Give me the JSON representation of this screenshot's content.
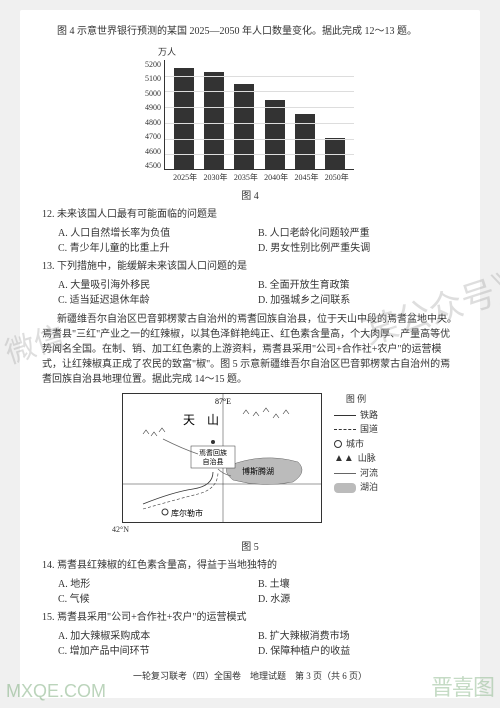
{
  "intro_text": "图 4 示意世界银行预测的某国 2025—2050 年人口数量变化。据此完成 12～13 题。",
  "chart": {
    "type": "bar",
    "yaxis_label": "万人",
    "ylim": [
      4500,
      5200
    ],
    "yticks": [
      5200,
      5100,
      5000,
      4900,
      4800,
      4700,
      4600,
      4500
    ],
    "categories": [
      "2025年",
      "2030年",
      "2035年",
      "2040年",
      "2045年",
      "2050年"
    ],
    "values": [
      5140,
      5120,
      5040,
      4940,
      4850,
      4700
    ],
    "bar_color": "#333333",
    "grid_color": "#dddddd",
    "caption": "图 4"
  },
  "q12": {
    "stem": "12. 未来该国人口最有可能面临的问题是",
    "opts": {
      "A": "A. 人口自然增长率为负值",
      "B": "B. 人口老龄化问题较严重",
      "C": "C. 青少年儿童的比重上升",
      "D": "D. 男女性别比例严重失调"
    }
  },
  "q13": {
    "stem": "13. 下列措施中，能缓解未来该国人口问题的是",
    "opts": {
      "A": "A. 大量吸引海外移民",
      "B": "B. 全面开放生育政策",
      "C": "C. 适当延迟退休年龄",
      "D": "D. 加强城乡之间联系"
    }
  },
  "passage_text": "新疆维吾尔自治区巴音郭楞蒙古自治州的焉耆回族自治县，位于天山中段的焉耆盆地中央。焉耆县\"三红\"产业之一的红辣椒，以其色泽鲜艳纯正、红色素含量高，个大肉厚、产量高等优势闻名全国。在制、销、加工红色素的上游资料，焉耆县采用\"公司+合作社+农户\"的运营模式，让红辣椒真正成了农民的致富\"椒\"。图 5 示意新疆维吾尔自治区巴音郭楞蒙古自治州的焉耆回族自治县地理位置。据此完成 14～15 题。",
  "map": {
    "caption": "图 5",
    "lon_label": "87°E",
    "lat_label": "42°N",
    "mountain_label": "天　山",
    "county_label": "焉耆回族\n自治县",
    "lake_label": "博斯腾湖",
    "city_label": "库尔勒市",
    "legend_title": "图 例",
    "legend": {
      "rail": "铁路",
      "road": "国道",
      "city": "城市",
      "peak": "山脉",
      "river": "河流",
      "lake": "湖泊"
    },
    "colors": {
      "border": "#333333",
      "lake_fill": "#bbbbbb",
      "stroke": "#333333"
    }
  },
  "q14": {
    "stem": "14. 焉耆县红辣椒的红色素含量高，得益于当地独特的",
    "opts": {
      "A": "A. 地形",
      "B": "B. 土壤",
      "C": "C. 气候",
      "D": "D. 水源"
    }
  },
  "q15": {
    "stem": "15. 焉耆县采用\"公司+合作社+农户\"的运营模式",
    "opts": {
      "A": "A. 加大辣椒采购成本",
      "B": "B. 扩大辣椒消费市场",
      "C": "C. 增加产品中间环节",
      "D": "D. 保障种植户的收益"
    }
  },
  "footer_text": "一轮复习联考（四）全国卷　地理试题　第 3 页（共 6 页）",
  "watermarks": {
    "wm1": "微信",
    "wm2": "某公众号》",
    "wm3": "晋喜图",
    "wm4": "MXQE.COM"
  }
}
